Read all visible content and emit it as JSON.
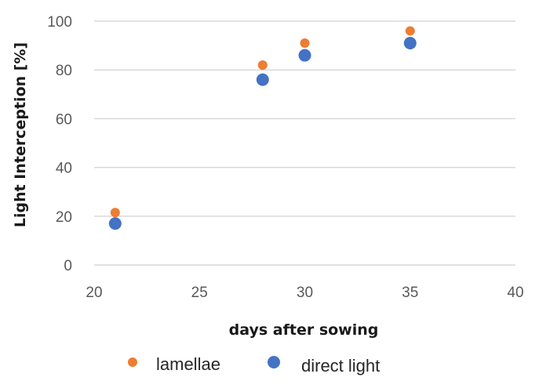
{
  "chart_data": {
    "type": "scatter",
    "title": "",
    "xlabel": "days after sowing",
    "ylabel": "Light Interception [%]",
    "xlim": [
      20,
      40
    ],
    "ylim": [
      0,
      100
    ],
    "xticks": [
      "20",
      "25",
      "30",
      "35",
      "40"
    ],
    "yticks": [
      "0",
      "20",
      "40",
      "60",
      "80",
      "100"
    ],
    "grid": "horizontal",
    "legend_position": "bottom",
    "series": [
      {
        "name": "lamellae",
        "color": "#ED7D31",
        "x": [
          21,
          28,
          30,
          35
        ],
        "y": [
          21.5,
          82,
          91,
          96
        ]
      },
      {
        "name": "direct light",
        "color": "#4472C4",
        "x": [
          21,
          28,
          30,
          35
        ],
        "y": [
          17,
          76,
          86,
          91
        ]
      }
    ]
  }
}
